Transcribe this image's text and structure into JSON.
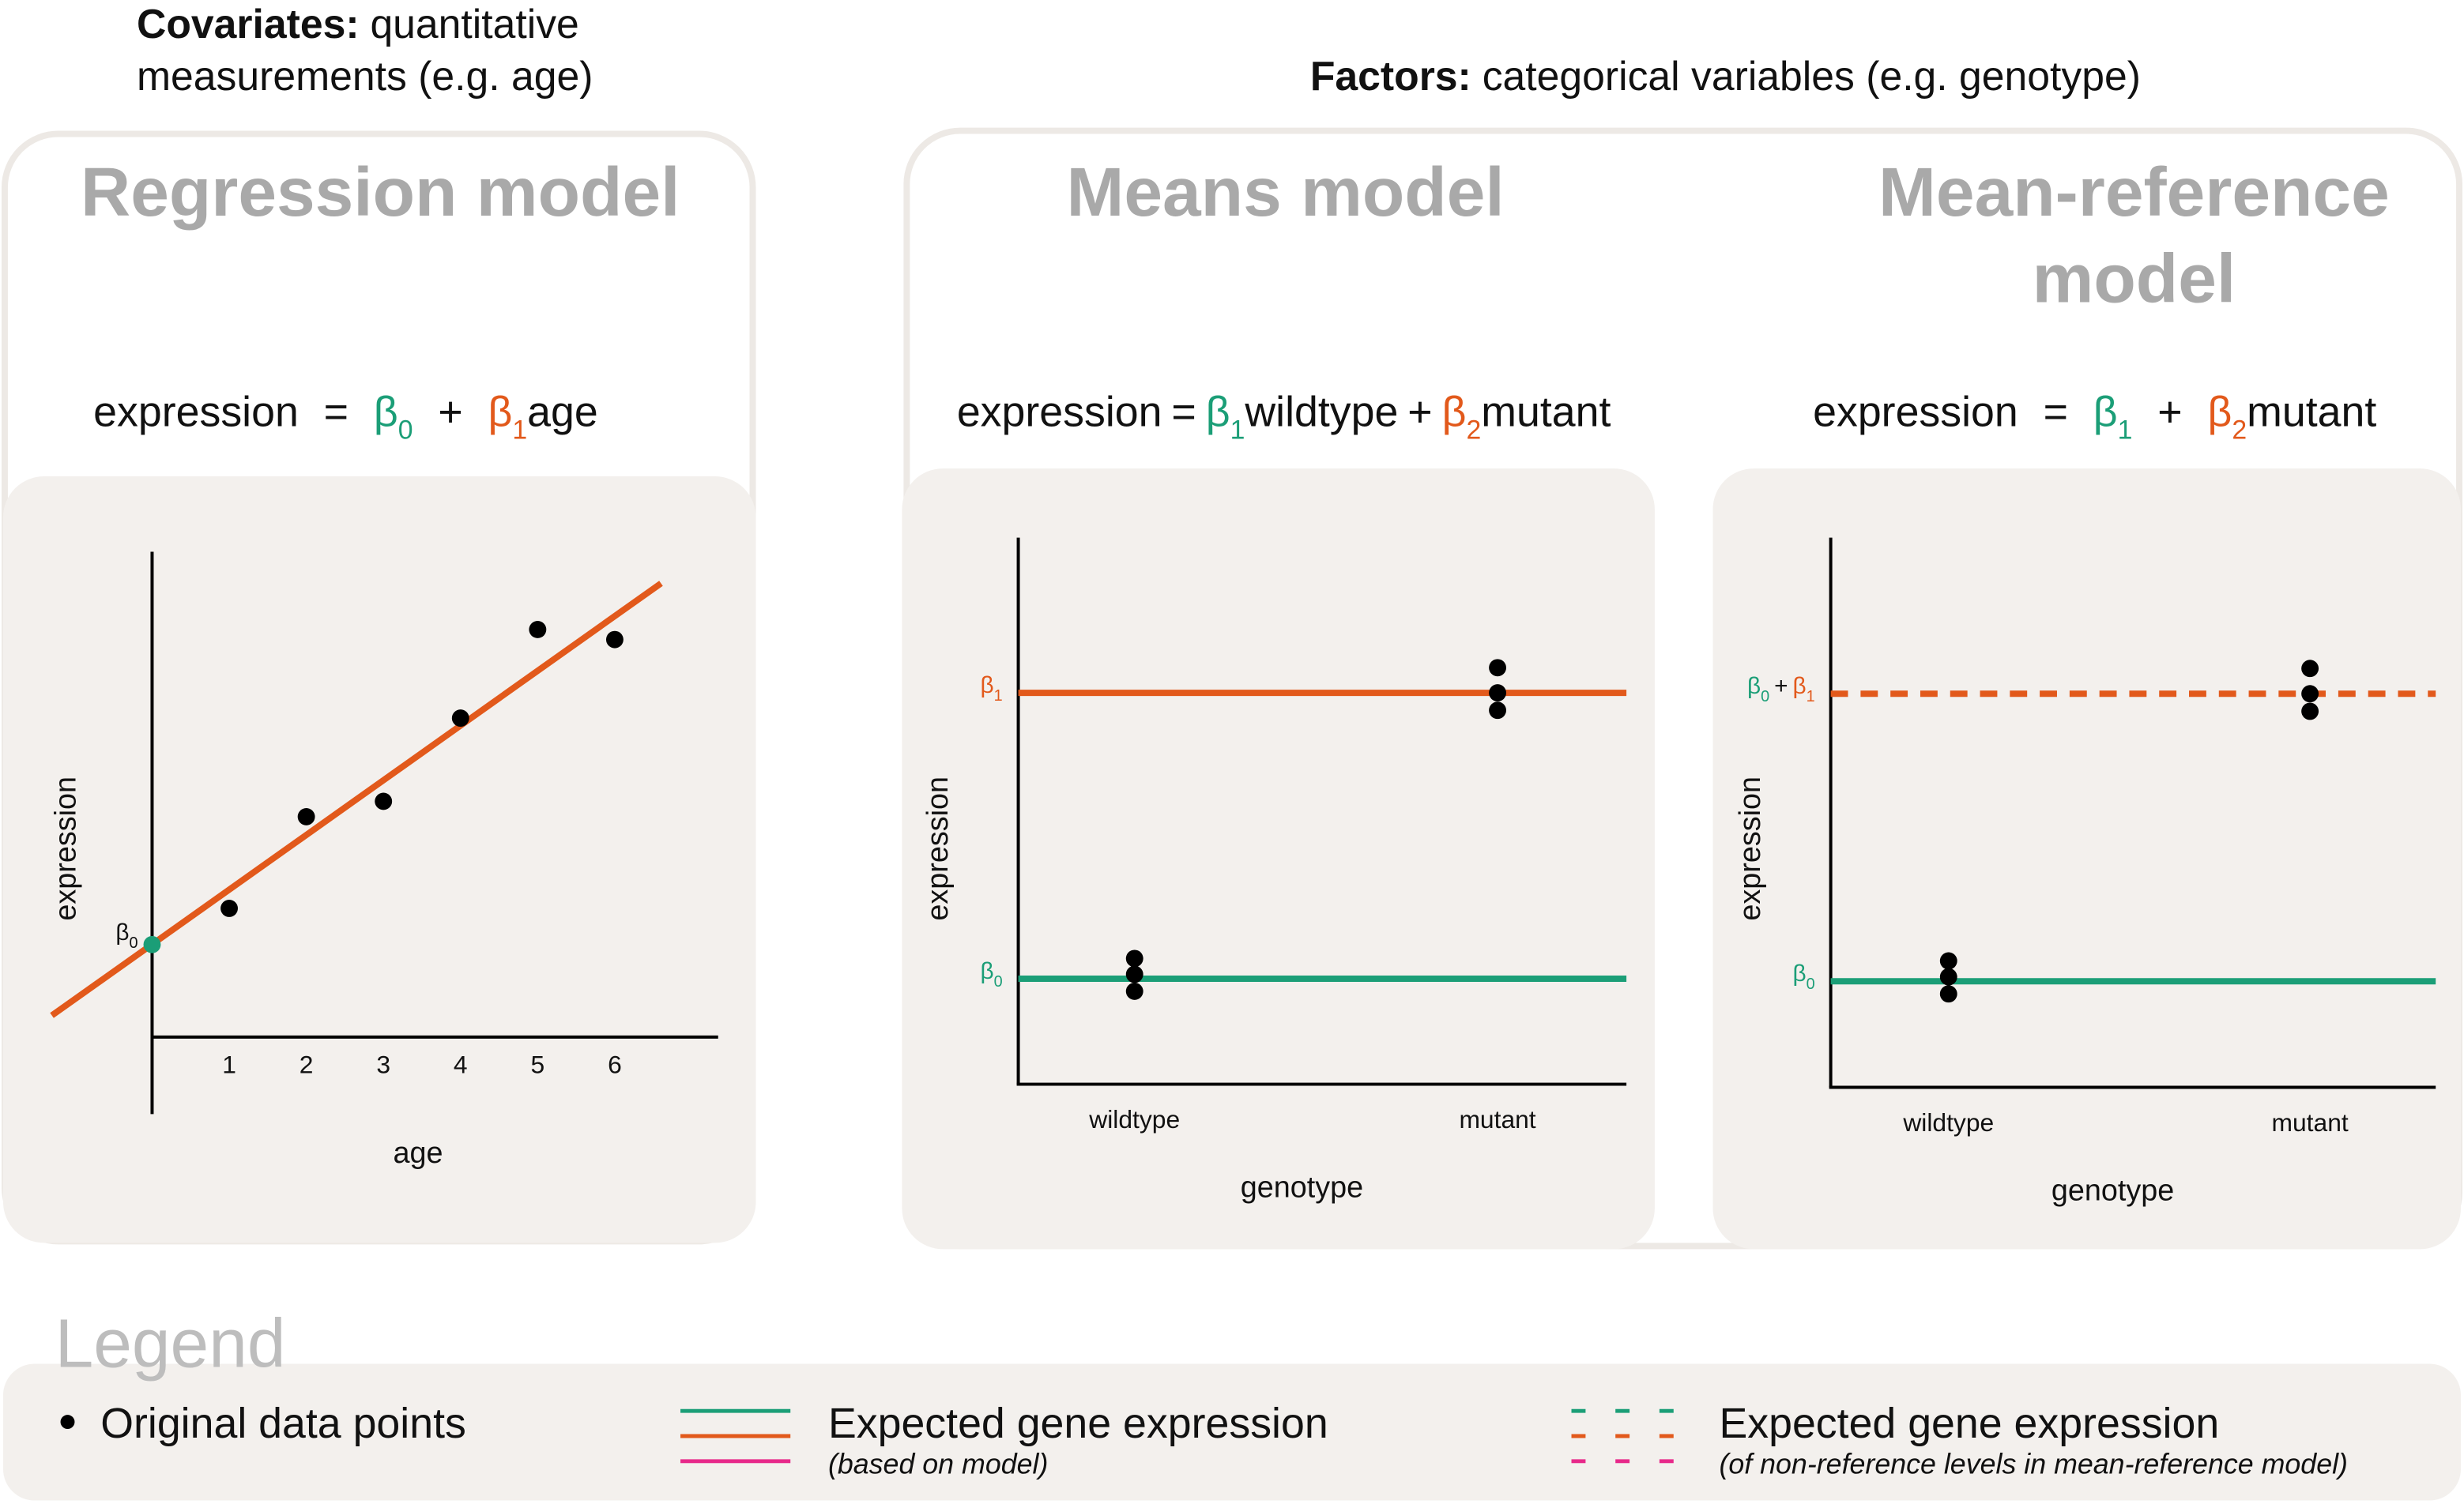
{
  "headers": {
    "covariates": {
      "label": "Covariates:",
      "lines": [
        "quantitative",
        "measurements (e.g. age)"
      ]
    },
    "factors": {
      "label": "Factors:",
      "text": "categorical variables (e.g. genotype)"
    }
  },
  "panels": [
    {
      "title": [
        "Regression model"
      ],
      "equation": [
        {
          "text": "expression"
        },
        {
          "text": "="
        },
        {
          "text": "β",
          "sub": "0",
          "color": "#1b9e77"
        },
        {
          "text": "+"
        },
        {
          "text": "β",
          "sub": "1",
          "color": "#e2591b",
          "suffix": "age"
        }
      ],
      "plot": {
        "type": "scatter",
        "xlabel": "age",
        "ylabel": "expression",
        "xlim": [
          -1.3,
          7.3
        ],
        "ylim": [
          -1,
          6.3
        ],
        "xticks": [
          1,
          2,
          3,
          4,
          5,
          6
        ],
        "x": [
          1,
          2,
          3,
          4,
          5,
          6
        ],
        "y": [
          1.67,
          2.86,
          3.06,
          4.14,
          5.29,
          5.16
        ],
        "point_color": "#000000",
        "fit": {
          "x": [
            -1.3,
            6.6
          ],
          "y": [
            0.28,
            5.89
          ],
          "color": "#e2591b"
        },
        "intercept": {
          "x": 0,
          "y": 1.2,
          "color": "#1b9e77",
          "label": [
            {
              "text": "β",
              "sub": "0"
            }
          ]
        }
      }
    },
    {
      "title": [
        "Means model"
      ],
      "equation": [
        {
          "text": "expression"
        },
        {
          "text": "="
        },
        {
          "text": "β",
          "sub": "1",
          "color": "#1b9e77",
          "suffix": "wildtype"
        },
        {
          "text": "+"
        },
        {
          "text": "β",
          "sub": "2",
          "color": "#e2591b",
          "suffix": "mutant"
        }
      ],
      "plot": {
        "type": "strip",
        "xlabel": "genotype",
        "ylabel": "expression",
        "ylim": [
          0,
          10
        ],
        "categories": [
          "wildtype",
          "mutant"
        ],
        "points": [
          [
            2.3,
            2.01,
            1.7
          ],
          [
            7.62,
            7.16,
            6.84
          ]
        ],
        "point_color": "#000000",
        "levels": [
          {
            "value": 7.16,
            "color": "#e2591b",
            "dashed": false,
            "label": [
              {
                "text": "β",
                "sub": "1",
                "color": "#e2591b"
              }
            ]
          },
          {
            "value": 1.93,
            "color": "#1b9e77",
            "dashed": false,
            "label": [
              {
                "text": "β",
                "sub": "0",
                "color": "#1b9e77"
              }
            ]
          }
        ]
      }
    },
    {
      "title": [
        "Mean-reference",
        "model"
      ],
      "equation": [
        {
          "text": "expression"
        },
        {
          "text": "="
        },
        {
          "text": "β",
          "sub": "1",
          "color": "#1b9e77"
        },
        {
          "text": "+"
        },
        {
          "text": "β",
          "sub": "2",
          "color": "#e2591b",
          "suffix": "mutant"
        }
      ],
      "plot": {
        "type": "strip",
        "xlabel": "genotype",
        "ylabel": "expression",
        "ylim": [
          0,
          10
        ],
        "categories": [
          "wildtype",
          "mutant"
        ],
        "points": [
          [
            2.3,
            2.01,
            1.7
          ],
          [
            7.62,
            7.16,
            6.84
          ]
        ],
        "point_color": "#000000",
        "levels": [
          {
            "value": 7.16,
            "color": "#e2591b",
            "dashed": true,
            "label": [
              {
                "text": "β",
                "sub": "0",
                "color": "#1b9e77"
              },
              {
                "text": "+"
              },
              {
                "text": "β",
                "sub": "1",
                "color": "#e2591b"
              }
            ]
          },
          {
            "value": 1.93,
            "color": "#1b9e77",
            "dashed": false,
            "label": [
              {
                "text": "β",
                "sub": "0",
                "color": "#1b9e77"
              }
            ]
          }
        ]
      }
    }
  ],
  "legend": {
    "title": "Legend",
    "items": [
      {
        "text": "Original data points",
        "color": "#000000"
      },
      {
        "text": "Expected gene expression",
        "note": "(based on model)",
        "colors": [
          "#1b9e77",
          "#e2591b",
          "#e7298a"
        ],
        "dashed": false
      },
      {
        "text": "Expected gene expression",
        "note": "(of non-reference levels in mean-reference model)",
        "colors": [
          "#1b9e77",
          "#e2591b",
          "#e7298a"
        ],
        "dashed": true
      }
    ]
  }
}
